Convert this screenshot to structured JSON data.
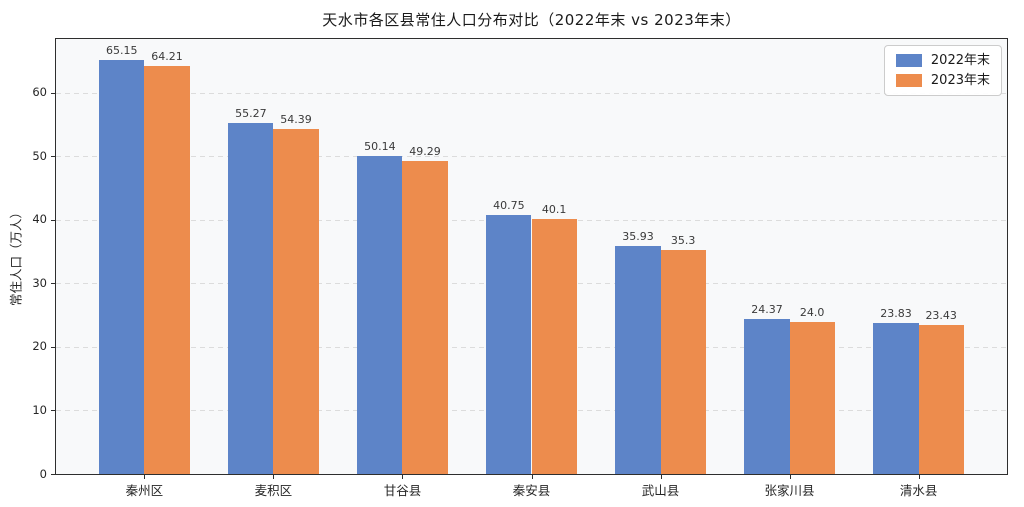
{
  "chart_data": {
    "type": "bar",
    "title": "天水市各区县常住人口分布对比（2022年末 vs 2023年末）",
    "xlabel": "",
    "ylabel": "常住人口（万人）",
    "categories": [
      "秦州区",
      "麦积区",
      "甘谷县",
      "秦安县",
      "武山县",
      "张家川县",
      "清水县"
    ],
    "series": [
      {
        "name": "2022年末",
        "color": "#5d84c8",
        "values": [
          65.15,
          55.27,
          50.14,
          40.75,
          35.93,
          24.37,
          23.83
        ],
        "labels": [
          "65.15",
          "55.27",
          "50.14",
          "40.75",
          "35.93",
          "24.37",
          "23.83"
        ]
      },
      {
        "name": "2023年末",
        "color": "#ed8c4d",
        "values": [
          64.21,
          54.39,
          49.29,
          40.1,
          35.3,
          24.0,
          23.43
        ],
        "labels": [
          "64.21",
          "54.39",
          "49.29",
          "40.1",
          "35.3",
          "24.0",
          "23.43"
        ]
      }
    ],
    "yticks": [
      0,
      10,
      20,
      30,
      40,
      50,
      60
    ],
    "ytick_labels": [
      "0",
      "10",
      "20",
      "30",
      "40",
      "50",
      "60"
    ],
    "ylim": [
      0,
      68.5
    ],
    "grid": "horizontal-dashed",
    "legend_position": "top-right"
  },
  "colors": {
    "figure_bg": "#ffffff",
    "plot_bg": "#f8f9fa",
    "grid": "#dcdcdc",
    "spine": "#2e2e2e",
    "value_label": "#3a3a3a"
  }
}
